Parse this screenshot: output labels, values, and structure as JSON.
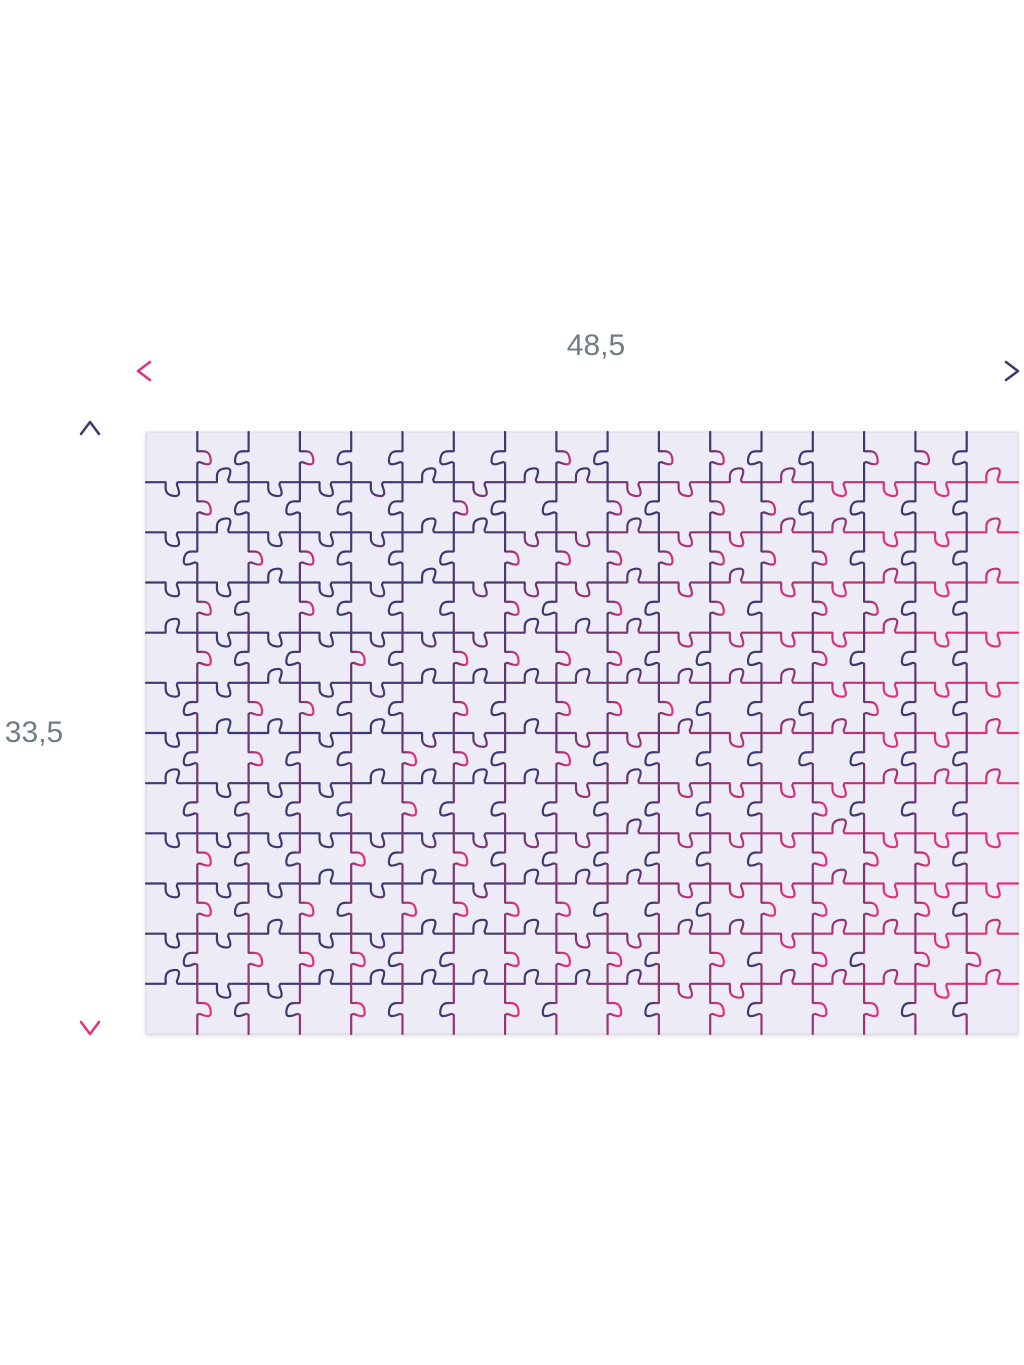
{
  "dimensions": {
    "width_label": "48,5",
    "height_label": "33,5"
  },
  "puzzle": {
    "columns": 17,
    "rows": 12
  },
  "colors": {
    "label_text": "#6f7d85",
    "navy": "#3b3a6e",
    "magenta": "#e2317a",
    "board_fill": "#ecebf6",
    "board_edge": "#d9d8e6"
  }
}
